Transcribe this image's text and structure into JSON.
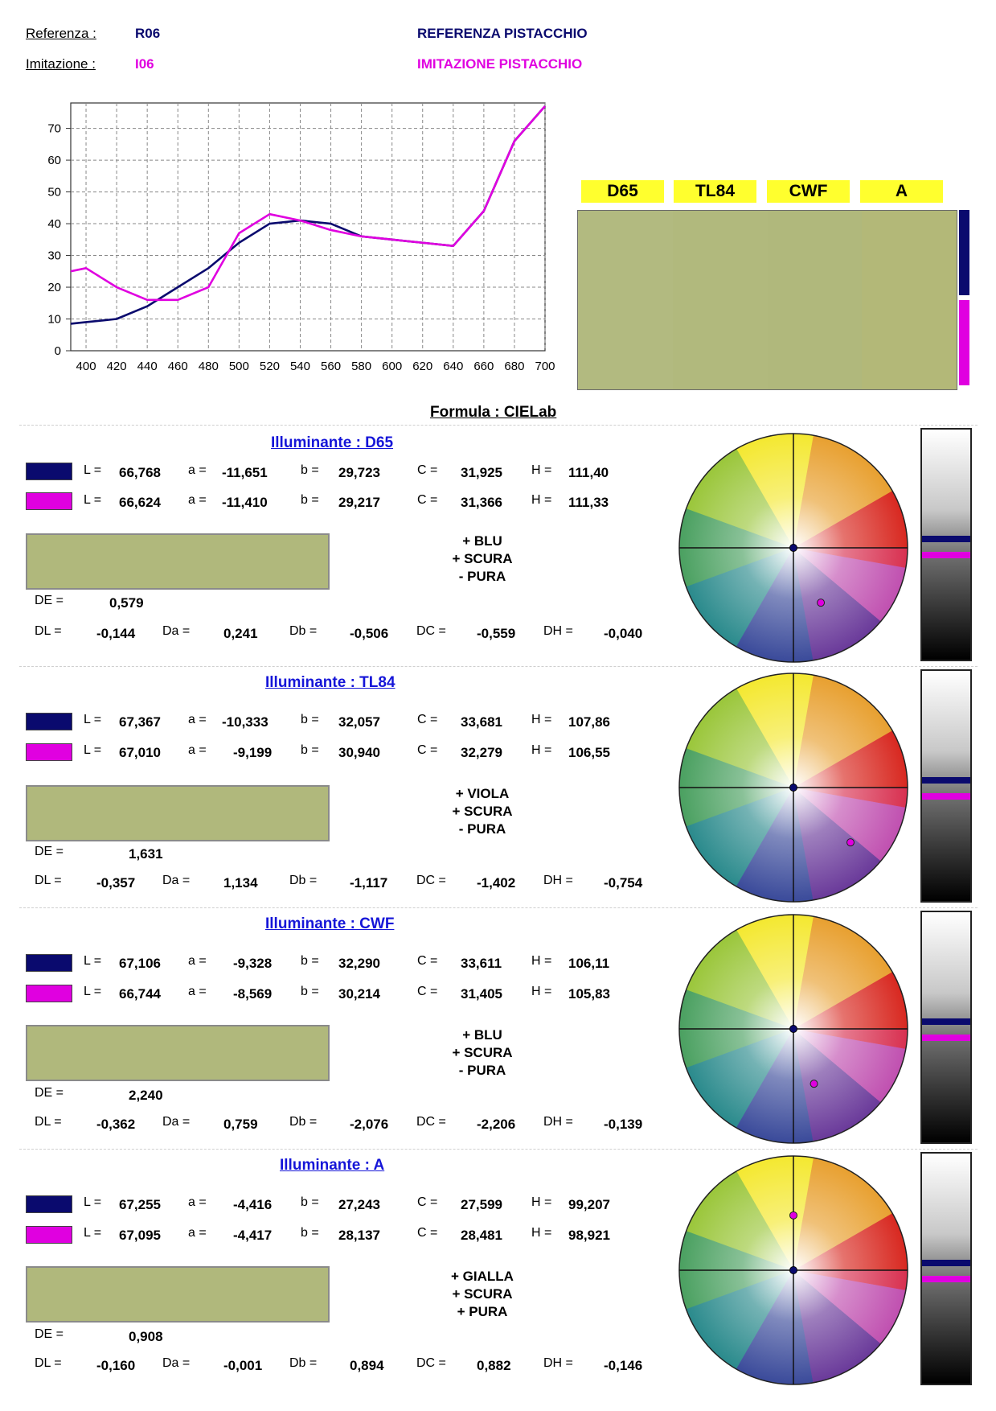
{
  "header": {
    "ref_label": "Referenza :",
    "ref_code": "R06",
    "ref_name": "REFERENZA PISTACCHIO",
    "imi_label": "Imitazione :",
    "imi_code": "I06",
    "imi_name": "IMITAZIONE PISTACCHIO"
  },
  "colors": {
    "reference": "#0a0a6e",
    "imitation": "#e000e0",
    "swatch": "#b0b87c",
    "illuminant_tab": "#ffff2e"
  },
  "illuminant_tabs": [
    "D65",
    "TL84",
    "CWF",
    "A"
  ],
  "formula": "Formula : CIELab",
  "chart_data": {
    "type": "line",
    "x": [
      400,
      420,
      440,
      460,
      480,
      500,
      520,
      540,
      560,
      580,
      600,
      620,
      640,
      660,
      680,
      700
    ],
    "series": [
      {
        "values": [
          9,
          10,
          14,
          20,
          26,
          34,
          40,
          41,
          40,
          36,
          35,
          34,
          33,
          44,
          66,
          77
        ]
      },
      {
        "values": [
          26,
          20,
          16,
          16,
          20,
          37,
          43,
          41,
          38,
          36,
          35,
          34,
          33,
          44,
          66,
          77
        ]
      }
    ],
    "xlim": [
      390,
      700
    ],
    "ylim": [
      0,
      78
    ],
    "xticks": [
      400,
      420,
      440,
      460,
      480,
      500,
      520,
      540,
      560,
      580,
      600,
      620,
      640,
      660,
      680,
      700
    ],
    "yticks": [
      0,
      10,
      20,
      30,
      40,
      50,
      60,
      70
    ],
    "grid": true
  },
  "labels": {
    "L": "L =",
    "a": "a =",
    "b": "b =",
    "C": "C =",
    "H": "H =",
    "DE": "DE =",
    "DL": "DL =",
    "Da": "Da =",
    "Db": "Db =",
    "DC": "DC =",
    "DH": "DH ="
  },
  "sections": [
    {
      "title": "Illuminante : D65",
      "ref": {
        "L": "66,768",
        "a": "-11,651",
        "b": "29,723",
        "C": "31,925",
        "H": "111,40"
      },
      "imi": {
        "L": "66,624",
        "a": "-11,410",
        "b": "29,217",
        "C": "31,366",
        "H": "111,33"
      },
      "diagnosis": [
        "+ BLU",
        "+ SCURA",
        "- PURA"
      ],
      "DE": "0,579",
      "deltas": {
        "DL": "-0,144",
        "Da": "0,241",
        "Db": "-0,506",
        "DC": "-0,559",
        "DH": "-0,040"
      }
    },
    {
      "title": "Illuminante : TL84",
      "ref": {
        "L": "67,367",
        "a": "-10,333",
        "b": "32,057",
        "C": "33,681",
        "H": "107,86"
      },
      "imi": {
        "L": "67,010",
        "a": "-9,199",
        "b": "30,940",
        "C": "32,279",
        "H": "106,55"
      },
      "diagnosis": [
        "+ VIOLA",
        "+ SCURA",
        "- PURA"
      ],
      "DE": "1,631",
      "deltas": {
        "DL": "-0,357",
        "Da": "1,134",
        "Db": "-1,117",
        "DC": "-1,402",
        "DH": "-0,754"
      }
    },
    {
      "title": "Illuminante : CWF",
      "ref": {
        "L": "67,106",
        "a": "-9,328",
        "b": "32,290",
        "C": "33,611",
        "H": "106,11"
      },
      "imi": {
        "L": "66,744",
        "a": "-8,569",
        "b": "30,214",
        "C": "31,405",
        "H": "105,83"
      },
      "diagnosis": [
        "+ BLU",
        "+ SCURA",
        "- PURA"
      ],
      "DE": "2,240",
      "deltas": {
        "DL": "-0,362",
        "Da": "0,759",
        "Db": "-2,076",
        "DC": "-2,206",
        "DH": "-0,139"
      }
    },
    {
      "title": "Illuminante : A",
      "ref": {
        "L": "67,255",
        "a": "-4,416",
        "b": "27,243",
        "C": "27,599",
        "H": "99,207"
      },
      "imi": {
        "L": "67,095",
        "a": "-4,417",
        "b": "28,137",
        "C": "28,481",
        "H": "98,921"
      },
      "diagnosis": [
        "+ GIALLA",
        "+ SCURA",
        "+ PURA"
      ],
      "DE": "0,908",
      "deltas": {
        "DL": "-0,160",
        "Da": "-0,001",
        "Db": "0,894",
        "DC": "0,882",
        "DH": "-0,146"
      }
    }
  ]
}
